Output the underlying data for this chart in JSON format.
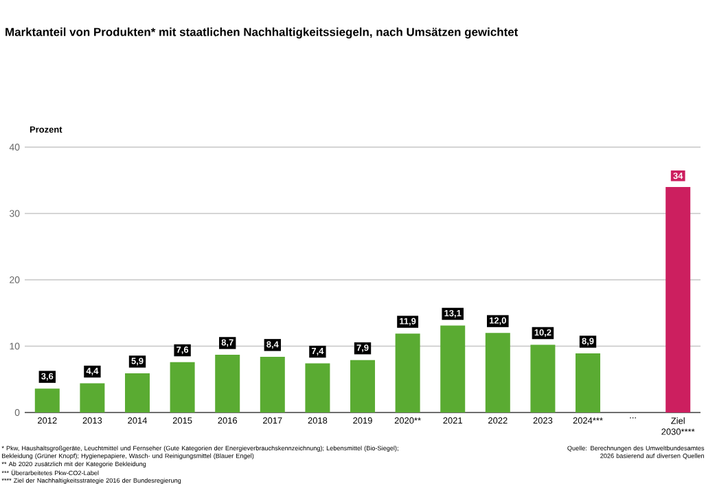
{
  "chart_data": {
    "type": "bar",
    "title": "Marktanteil von Produkten* mit staatlichen Nachhaltigkeitssiegeln, nach Umsätzen gewichtet",
    "ylabel": "Prozent",
    "categories": [
      "2012",
      "2013",
      "2014",
      "2015",
      "2016",
      "2017",
      "2018",
      "2019",
      "2020**",
      "2021",
      "2022",
      "2023",
      "2024***",
      "...",
      "Ziel 2030****"
    ],
    "values": [
      3.6,
      4.4,
      5.9,
      7.6,
      8.7,
      8.4,
      7.4,
      7.9,
      11.9,
      13.1,
      12.0,
      10.2,
      8.9,
      null,
      34
    ],
    "value_labels": [
      "3,6",
      "4,4",
      "5,9",
      "7,6",
      "8,7",
      "8,4",
      "7,4",
      "7,9",
      "11,9",
      "13,1",
      "12,0",
      "10,2",
      "8,9",
      null,
      "34"
    ],
    "colors": [
      "#5aab32",
      "#5aab32",
      "#5aab32",
      "#5aab32",
      "#5aab32",
      "#5aab32",
      "#5aab32",
      "#5aab32",
      "#5aab32",
      "#5aab32",
      "#5aab32",
      "#5aab32",
      "#5aab32",
      "#5aab32",
      "#cc1f5f"
    ],
    "ylim": [
      0,
      40
    ],
    "yticks": [
      0,
      10,
      20,
      30,
      40
    ],
    "grid": "y",
    "annotations": [
      "* Pkw, Haushaltsgroßgeräte, Leuchtmittel und Fernseher (Gute Kategorien der Energieverbrauchskennzeichnung); Lebensmittel (Bio-Siegel); Bekleidung (Grüner Knopf); Hygienepapiere, Wasch- und Reinigungsmittel (Blauer Engel)",
      "** Ab 2020 zusätzlich mit der Kategorie Bekleidung",
      "*** Überarbeitetes Pkw-CO2-Label",
      "**** Ziel der Nachhaltigkeitsstrategie 2016 der Bundesregierung",
      "Quelle: Berechnungen des Umweltbundesamtes 2026 basierend auf diversen Quellen"
    ]
  }
}
